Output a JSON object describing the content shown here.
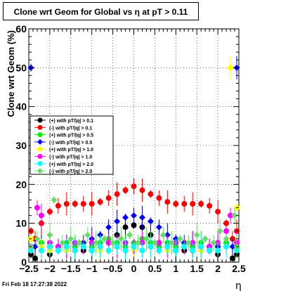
{
  "chart_data": {
    "type": "scatter",
    "title": "Clone wrt Geom for Global vs   η at pT > 0.11",
    "xlabel": "η",
    "ylabel": "Clone wrt Geom (%)",
    "xlim": [
      -2.5,
      2.5
    ],
    "ylim": [
      0,
      60
    ],
    "xticks": [
      "−2.5",
      "−2",
      "−1.5",
      "−1",
      "−0.5",
      "0",
      "0.5",
      "1",
      "1.5",
      "2",
      "2.5"
    ],
    "yticks": [
      "0",
      "10",
      "20",
      "30",
      "40",
      "50",
      "60"
    ],
    "grid": true,
    "legend_position": "center-left",
    "footer": "Fri Feb 18 17:27:38 2022",
    "series": [
      {
        "name": "(+) with pT/|q| > 0.1",
        "color": "#000000",
        "marker": "circle",
        "x": [
          -2.45,
          -2.35,
          -2.0,
          -1.8,
          -1.6,
          -1.4,
          -1.2,
          -1.0,
          -0.8,
          -0.6,
          -0.4,
          -0.2,
          0.0,
          0.2,
          0.4,
          0.6,
          0.8,
          1.0,
          1.2,
          1.4,
          1.6,
          1.8,
          2.0,
          2.35,
          2.45
        ],
        "y": [
          2,
          1,
          2,
          3,
          3,
          3,
          3,
          3,
          4,
          5,
          7,
          9,
          9.5,
          9,
          7,
          5,
          4,
          3,
          3,
          3,
          3,
          3,
          2,
          1,
          2
        ]
      },
      {
        "name": "(-) with pT/|q| > 0.1",
        "color": "#ff0000",
        "marker": "circle",
        "x": [
          -2.45,
          -2.35,
          -2.2,
          -2.0,
          -1.8,
          -1.6,
          -1.4,
          -1.2,
          -1.0,
          -0.8,
          -0.6,
          -0.4,
          -0.2,
          0.0,
          0.2,
          0.4,
          0.6,
          0.8,
          1.0,
          1.2,
          1.4,
          1.6,
          1.8,
          2.0,
          2.2,
          2.35,
          2.45
        ],
        "y": [
          8,
          6,
          10,
          13,
          14.5,
          15,
          15,
          15,
          15,
          15.5,
          16.5,
          17.5,
          18.5,
          19.5,
          18.5,
          17.5,
          16.5,
          15.5,
          15,
          15,
          15,
          15,
          14.5,
          13,
          10,
          6,
          8
        ]
      },
      {
        "name": "(+) with pT/|q| > 0.5",
        "color": "#00ee00",
        "marker": "circle",
        "x": [
          -2.45,
          -2.2,
          -2.0,
          -1.8,
          -1.6,
          -1.4,
          -1.2,
          -1.0,
          -0.8,
          -0.6,
          -0.4,
          -0.2,
          0.0,
          0.2,
          0.4,
          0.6,
          0.8,
          1.0,
          1.2,
          1.4,
          1.6,
          1.8,
          2.0,
          2.2,
          2.45
        ],
        "y": [
          4,
          5,
          4,
          4,
          5,
          4,
          5,
          4,
          5,
          6,
          5,
          4,
          5,
          6,
          5,
          4,
          5,
          4,
          5,
          4,
          5,
          4,
          4,
          5,
          4
        ]
      },
      {
        "name": "(-) with pT/|q| > 0.5",
        "color": "#0000ff",
        "marker": "diamond",
        "x": [
          -2.45,
          -2.35,
          -2.2,
          -2.0,
          -1.8,
          -1.6,
          -1.4,
          -1.2,
          -1.0,
          -0.8,
          -0.6,
          -0.4,
          -0.2,
          0.0,
          0.2,
          0.4,
          0.6,
          0.8,
          1.0,
          1.2,
          1.4,
          1.6,
          1.8,
          2.0,
          2.2,
          2.35,
          2.45
        ],
        "y": [
          50,
          4,
          4,
          4,
          4,
          4,
          5,
          5,
          6,
          7,
          9,
          10.5,
          11.5,
          12,
          11.5,
          10.5,
          9,
          7,
          6,
          5,
          5,
          4,
          4,
          4,
          4,
          4,
          50
        ]
      },
      {
        "name": "(+) with pT/|q| > 1.0",
        "color": "#ffff00",
        "marker": "circle",
        "x": [
          -2.45,
          -2.2,
          -2.0,
          -1.6,
          -1.2,
          -0.8,
          -0.4,
          0.0,
          0.4,
          0.8,
          1.2,
          1.6,
          2.0,
          2.2,
          2.3,
          2.45
        ],
        "y": [
          6,
          4,
          3,
          3,
          4,
          3,
          4,
          3,
          4,
          3,
          4,
          3,
          3,
          4,
          50,
          14
        ]
      },
      {
        "name": "(-) with pT/|q| > 1.0",
        "color": "#ff00ff",
        "marker": "circle",
        "x": [
          -2.45,
          -2.3,
          -2.2,
          -2.0,
          -1.8,
          -1.6,
          -1.4,
          -1.2,
          -1.0,
          -0.8,
          -0.6,
          -0.4,
          -0.2,
          0.0,
          0.2,
          0.4,
          0.6,
          0.8,
          1.0,
          1.2,
          1.4,
          1.6,
          1.8,
          2.0,
          2.2,
          2.3,
          2.45
        ],
        "y": [
          4,
          14,
          12,
          5,
          4,
          4,
          5,
          4,
          5,
          4,
          5,
          4,
          5,
          4,
          5,
          4,
          5,
          4,
          5,
          4,
          5,
          4,
          4,
          5,
          8,
          12,
          5
        ]
      },
      {
        "name": "(+) with pT/|q| > 2.0",
        "color": "#00ffff",
        "marker": "circle",
        "x": [
          -2.45,
          -2.2,
          -2.0,
          -1.8,
          -1.6,
          -1.4,
          -1.2,
          -1.0,
          -0.8,
          -0.6,
          -0.4,
          -0.2,
          0.0,
          0.2,
          0.4,
          0.6,
          0.8,
          1.0,
          1.2,
          1.4,
          1.6,
          1.8,
          2.0,
          2.2,
          2.45
        ],
        "y": [
          3,
          3,
          4,
          3,
          4,
          3,
          4,
          3,
          4,
          3,
          4,
          3,
          4,
          3,
          4,
          3,
          4,
          3,
          4,
          3,
          4,
          3,
          3,
          4,
          3
        ]
      },
      {
        "name": "(-) with pT/|q| > 2.0",
        "color": "#66dd66",
        "marker": "diamond",
        "x": [
          -2.45,
          -2.3,
          -2.0,
          -1.9,
          -1.7,
          -1.5,
          -1.3,
          -1.1,
          -0.9,
          -0.7,
          -0.5,
          -0.3,
          -0.1,
          0.1,
          0.3,
          0.5,
          0.7,
          0.9,
          1.1,
          1.3,
          1.5,
          1.7,
          1.9,
          2.05,
          2.2,
          2.4,
          2.45
        ],
        "y": [
          4,
          6,
          7,
          16,
          5,
          6,
          5,
          7,
          5,
          6,
          5,
          6,
          7,
          5,
          6,
          5,
          7,
          5,
          6,
          5,
          7,
          6,
          5,
          8,
          6,
          12,
          4
        ]
      }
    ]
  }
}
